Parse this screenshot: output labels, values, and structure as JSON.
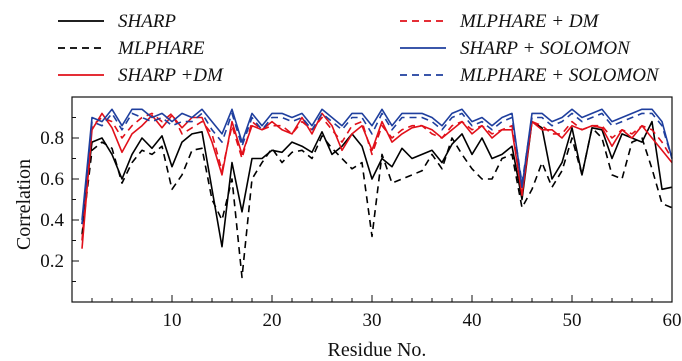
{
  "chart_data": {
    "type": "line",
    "xlabel": "Residue No.",
    "ylabel": "Correlation",
    "xlim": [
      0,
      60
    ],
    "ylim": [
      0,
      1.0
    ],
    "x_ticks": [
      10,
      20,
      30,
      40,
      50,
      60
    ],
    "x_tick_labels": [
      "10",
      "20",
      "30",
      "40",
      "50",
      "60"
    ],
    "y_ticks": [
      0.2,
      0.4,
      0.6,
      0.8
    ],
    "y_tick_labels": [
      "0.2",
      "0.4",
      "0.6",
      "0.8"
    ],
    "legend_position": "top",
    "grid": false,
    "x": [
      1,
      2,
      3,
      4,
      5,
      6,
      7,
      8,
      9,
      10,
      11,
      12,
      13,
      14,
      15,
      16,
      17,
      18,
      19,
      20,
      21,
      22,
      23,
      24,
      25,
      26,
      27,
      28,
      29,
      30,
      31,
      32,
      33,
      34,
      35,
      36,
      37,
      38,
      39,
      40,
      41,
      42,
      43,
      44,
      45,
      46,
      47,
      48,
      49,
      50,
      51,
      52,
      53,
      54,
      55,
      56,
      57,
      58,
      59,
      60
    ],
    "series": [
      {
        "name": "SHARP",
        "color": "#000000",
        "dash": "solid",
        "values": [
          0.38,
          0.78,
          0.8,
          0.72,
          0.6,
          0.72,
          0.8,
          0.75,
          0.81,
          0.66,
          0.78,
          0.82,
          0.83,
          0.55,
          0.27,
          0.68,
          0.44,
          0.7,
          0.7,
          0.74,
          0.73,
          0.78,
          0.76,
          0.73,
          0.83,
          0.72,
          0.76,
          0.82,
          0.76,
          0.6,
          0.7,
          0.66,
          0.75,
          0.7,
          0.72,
          0.74,
          0.68,
          0.77,
          0.82,
          0.72,
          0.8,
          0.7,
          0.72,
          0.76,
          0.5,
          0.88,
          0.85,
          0.6,
          0.68,
          0.85,
          0.62,
          0.85,
          0.84,
          0.7,
          0.82,
          0.8,
          0.78,
          0.88,
          0.55,
          0.56
        ]
      },
      {
        "name": "MLPHARE",
        "color": "#000000",
        "dash": "dashed",
        "values": [
          0.33,
          0.74,
          0.78,
          0.75,
          0.58,
          0.68,
          0.74,
          0.72,
          0.76,
          0.55,
          0.62,
          0.74,
          0.75,
          0.5,
          0.4,
          0.6,
          0.12,
          0.6,
          0.68,
          0.75,
          0.68,
          0.73,
          0.74,
          0.7,
          0.81,
          0.75,
          0.7,
          0.65,
          0.68,
          0.32,
          0.72,
          0.58,
          0.6,
          0.62,
          0.64,
          0.72,
          0.65,
          0.8,
          0.72,
          0.65,
          0.6,
          0.6,
          0.7,
          0.72,
          0.46,
          0.55,
          0.68,
          0.56,
          0.64,
          0.8,
          0.62,
          0.85,
          0.8,
          0.62,
          0.6,
          0.78,
          0.8,
          0.65,
          0.48,
          0.46
        ]
      },
      {
        "name": "SHARP +DM",
        "color": "#e1101a",
        "dash": "solid",
        "values": [
          0.26,
          0.84,
          0.92,
          0.85,
          0.73,
          0.82,
          0.86,
          0.91,
          0.85,
          0.91,
          0.85,
          0.9,
          0.9,
          0.78,
          0.62,
          0.88,
          0.72,
          0.86,
          0.84,
          0.88,
          0.84,
          0.82,
          0.9,
          0.82,
          0.92,
          0.86,
          0.74,
          0.82,
          0.86,
          0.74,
          0.88,
          0.78,
          0.82,
          0.85,
          0.86,
          0.84,
          0.8,
          0.84,
          0.88,
          0.82,
          0.86,
          0.8,
          0.84,
          0.84,
          0.52,
          0.88,
          0.84,
          0.84,
          0.8,
          0.86,
          0.84,
          0.86,
          0.85,
          0.76,
          0.84,
          0.8,
          0.86,
          0.8,
          0.74,
          0.68
        ]
      },
      {
        "name": "MLPHARE + DM",
        "color": "#e1101a",
        "dash": "dashed",
        "values": [
          0.3,
          0.86,
          0.9,
          0.88,
          0.8,
          0.86,
          0.9,
          0.92,
          0.88,
          0.92,
          0.82,
          0.85,
          0.88,
          0.82,
          0.64,
          0.86,
          0.7,
          0.88,
          0.84,
          0.86,
          0.86,
          0.82,
          0.88,
          0.84,
          0.9,
          0.84,
          0.78,
          0.86,
          0.88,
          0.72,
          0.86,
          0.8,
          0.84,
          0.86,
          0.86,
          0.82,
          0.8,
          0.86,
          0.88,
          0.84,
          0.86,
          0.82,
          0.84,
          0.86,
          0.56,
          0.88,
          0.86,
          0.82,
          0.82,
          0.88,
          0.84,
          0.86,
          0.86,
          0.8,
          0.84,
          0.82,
          0.86,
          0.84,
          0.78,
          0.7
        ]
      },
      {
        "name": "SHARP + SOLOMON",
        "color": "#1f3f9e",
        "dash": "solid",
        "values": [
          0.4,
          0.9,
          0.88,
          0.94,
          0.86,
          0.94,
          0.94,
          0.9,
          0.92,
          0.88,
          0.92,
          0.9,
          0.94,
          0.88,
          0.82,
          0.94,
          0.78,
          0.92,
          0.86,
          0.92,
          0.92,
          0.9,
          0.92,
          0.86,
          0.94,
          0.9,
          0.86,
          0.92,
          0.92,
          0.86,
          0.94,
          0.86,
          0.92,
          0.92,
          0.92,
          0.9,
          0.86,
          0.92,
          0.94,
          0.88,
          0.9,
          0.86,
          0.9,
          0.92,
          0.56,
          0.92,
          0.92,
          0.88,
          0.9,
          0.94,
          0.9,
          0.92,
          0.94,
          0.88,
          0.9,
          0.92,
          0.94,
          0.94,
          0.88,
          0.7
        ]
      },
      {
        "name": "MLPHARE + SOLOMON",
        "color": "#1f3f9e",
        "dash": "dashed",
        "values": [
          0.38,
          0.88,
          0.86,
          0.92,
          0.84,
          0.92,
          0.9,
          0.88,
          0.9,
          0.86,
          0.88,
          0.88,
          0.92,
          0.84,
          0.78,
          0.92,
          0.76,
          0.9,
          0.84,
          0.9,
          0.9,
          0.88,
          0.9,
          0.84,
          0.92,
          0.88,
          0.84,
          0.9,
          0.9,
          0.82,
          0.92,
          0.84,
          0.9,
          0.9,
          0.9,
          0.88,
          0.84,
          0.9,
          0.92,
          0.86,
          0.88,
          0.84,
          0.88,
          0.9,
          0.58,
          0.9,
          0.9,
          0.86,
          0.88,
          0.92,
          0.88,
          0.9,
          0.92,
          0.86,
          0.88,
          0.9,
          0.92,
          0.92,
          0.86,
          0.7
        ]
      }
    ]
  }
}
